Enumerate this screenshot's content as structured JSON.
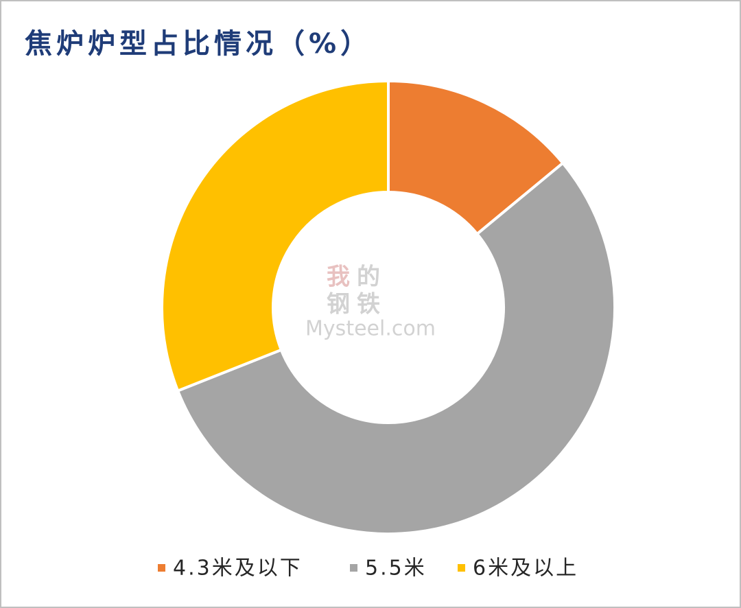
{
  "chart_data": {
    "type": "donut",
    "title": "焦炉炉型占比情况（%）",
    "categories": [
      "4.3米及以下",
      "5.5米",
      "6米及以上"
    ],
    "values": [
      14,
      55,
      31
    ],
    "colors": [
      "#ed7d31",
      "#a5a5a5",
      "#ffc000"
    ],
    "legend": "bottom"
  },
  "watermark": {
    "chars": [
      "我",
      "的",
      "钢",
      "铁"
    ],
    "text": "Mysteel.com"
  }
}
